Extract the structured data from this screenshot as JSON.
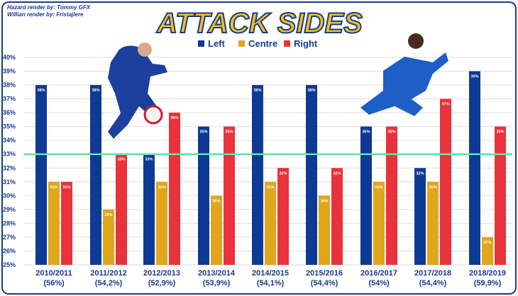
{
  "credits": [
    "Hazard render by: Tommy GFX",
    "Willian render by: Fristajlere"
  ],
  "chart_data": {
    "type": "bar",
    "title": "ATTACK SIDES",
    "legend_position": "top-center",
    "categories": [
      "2010/2011",
      "2011/2012",
      "2012/2013",
      "2013/2014",
      "2014/2015",
      "2015/2016",
      "2016/2017",
      "2017/2018",
      "2018/2019"
    ],
    "category_sublabels": [
      "(56%)",
      "(54,2%)",
      "(52,9%)",
      "(53,9%)",
      "(54,1%)",
      "(54,4%)",
      "(54%)",
      "(54,4%)",
      "(59,9%)"
    ],
    "series": [
      {
        "name": "Left",
        "color": "#0d3a94",
        "values": [
          38,
          38,
          33,
          35,
          38,
          38,
          35,
          32,
          39
        ]
      },
      {
        "name": "Centre",
        "color": "#e0a61c",
        "values": [
          31,
          29,
          31,
          30,
          31,
          30,
          31,
          31,
          27
        ]
      },
      {
        "name": "Right",
        "color": "#e8323c",
        "values": [
          31,
          33,
          36,
          35,
          32,
          32,
          35,
          37,
          35
        ]
      }
    ],
    "ylim": [
      25,
      40
    ],
    "y_ticks": [
      "25%",
      "26%",
      "27%",
      "28%",
      "29%",
      "30%",
      "31%",
      "32%",
      "33%",
      "34%",
      "35%",
      "36%",
      "37%",
      "38%",
      "39%",
      "40%"
    ],
    "reference_line": {
      "value": 33,
      "color": "#5ee6a8"
    },
    "grid": true
  }
}
